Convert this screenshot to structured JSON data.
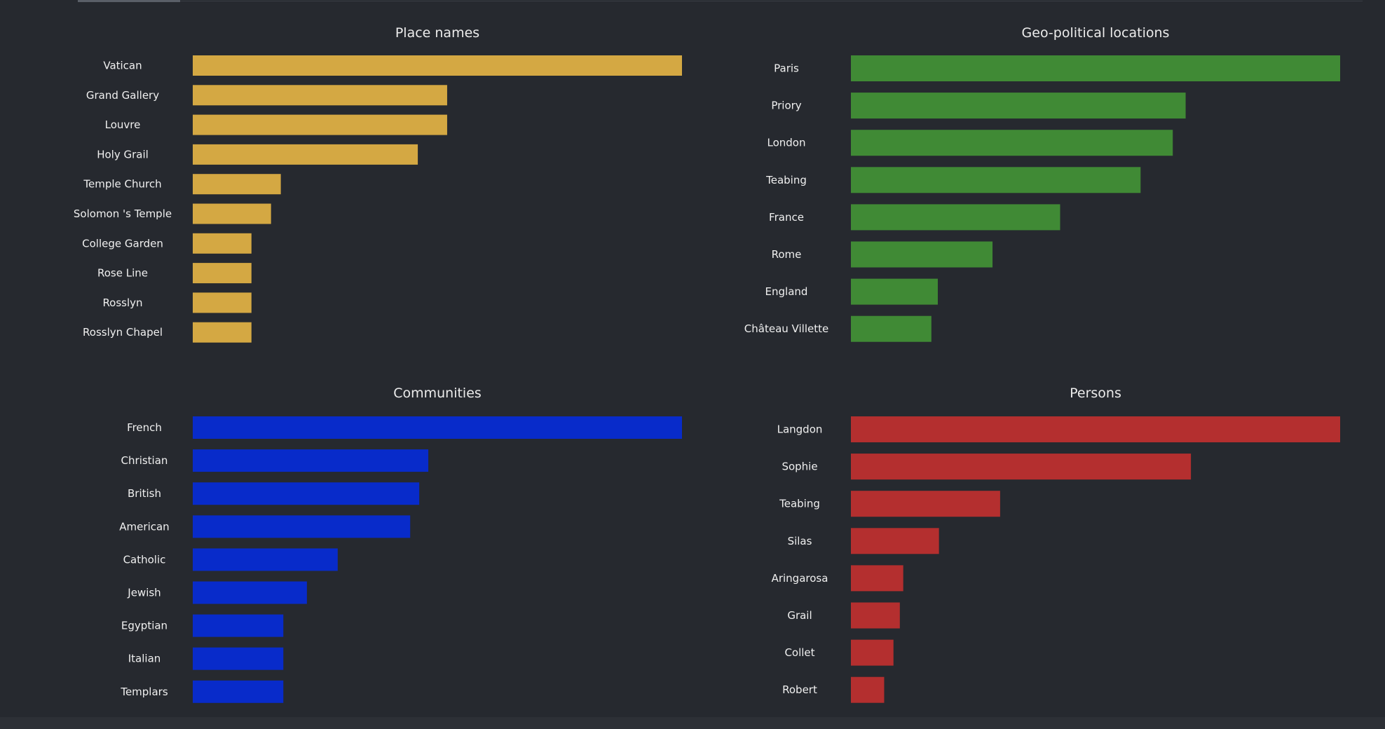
{
  "chart_data": [
    {
      "type": "bar",
      "orientation": "horizontal",
      "title": "Place names",
      "color": "#d4a843",
      "categories": [
        "Vatican",
        "Grand Gallery",
        "Louvre",
        "Holy Grail",
        "Temple Church",
        "Solomon 's Temple",
        "College Garden",
        "Rose Line",
        "Rosslyn",
        "Rosslyn Chapel"
      ],
      "values": [
        50,
        26,
        26,
        23,
        9,
        8,
        6,
        6,
        6,
        6
      ],
      "xlabel": "",
      "ylabel": "",
      "grid": false,
      "legend": "none"
    },
    {
      "type": "bar",
      "orientation": "horizontal",
      "title": "Geo-political locations",
      "color": "#408a35",
      "categories": [
        "Paris",
        "Priory",
        "London",
        "Teabing",
        "France",
        "Rome",
        "England",
        "Château Villette"
      ],
      "values": [
        76,
        52,
        50,
        45,
        32.5,
        22,
        13.5,
        12.5
      ],
      "xlabel": "",
      "ylabel": "",
      "grid": false,
      "legend": "none"
    },
    {
      "type": "bar",
      "orientation": "horizontal",
      "title": "Communities",
      "color": "#082bca",
      "categories": [
        "French",
        "Christian",
        "British",
        "American",
        "Catholic",
        "Jewish",
        "Egyptian",
        "Italian",
        "Templars"
      ],
      "values": [
        27,
        13,
        12.5,
        12,
        8,
        6.3,
        5,
        5,
        5
      ],
      "xlabel": "",
      "ylabel": "",
      "grid": false,
      "legend": "none"
    },
    {
      "type": "bar",
      "orientation": "horizontal",
      "title": "Persons",
      "color": "#b42f2f",
      "categories": [
        "Langdon",
        "Sophie",
        "Teabing",
        "Silas",
        "Aringarosa",
        "Grail",
        "Collet",
        "Robert"
      ],
      "values": [
        1000,
        695,
        305,
        180,
        107,
        100,
        87,
        68
      ],
      "xlabel": "",
      "ylabel": "",
      "grid": false,
      "legend": "none"
    }
  ]
}
